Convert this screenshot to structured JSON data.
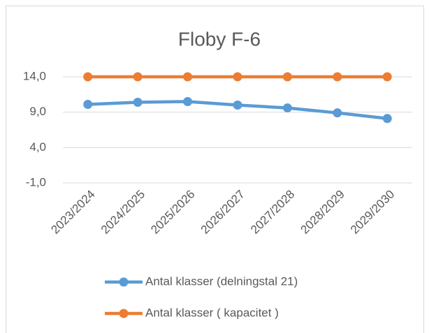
{
  "chart_data": {
    "type": "line",
    "title": "Floby F-6",
    "categories": [
      "2023/2024",
      "2024/2025",
      "2025/2026",
      "2026/2027",
      "2027/2028",
      "2028/2029",
      "2029/2030"
    ],
    "series": [
      {
        "name": "Antal klasser (delningstal 21)",
        "color": "#5b9bd5",
        "values": [
          10.1,
          10.4,
          10.5,
          10.0,
          9.6,
          8.9,
          8.1
        ]
      },
      {
        "name": "Antal klasser ( kapacitet )",
        "color": "#ed7d31",
        "values": [
          14,
          14,
          14,
          14,
          14,
          14,
          14
        ]
      }
    ],
    "ylim": [
      -1,
      14
    ],
    "yticks": [
      {
        "value": -1,
        "label": "-1,0"
      },
      {
        "value": 4,
        "label": "4,0"
      },
      {
        "value": 9,
        "label": "9,0"
      },
      {
        "value": 14,
        "label": "14,0"
      }
    ],
    "grid": true,
    "legend": "bottom"
  }
}
